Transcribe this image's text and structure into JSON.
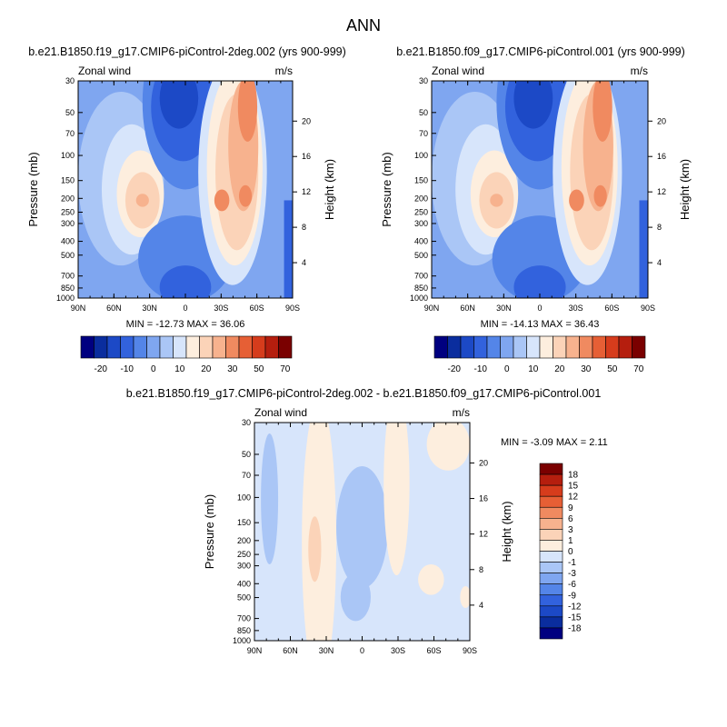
{
  "figure_title": "ANN",
  "chart_data": [
    {
      "type": "contour",
      "title": "b.e21.B1850.f19_g17.CMIP6-piControl-2deg.002 (yrs 900-999)",
      "left_label": "Zonal wind",
      "right_label": "m/s",
      "ylabel": "Pressure (mb)",
      "y2label": "Height (km)",
      "xticks": [
        "90N",
        "60N",
        "30N",
        "0",
        "30S",
        "60S",
        "90S"
      ],
      "yticks": [
        "30",
        "50",
        "70",
        "100",
        "150",
        "200",
        "250",
        "300",
        "400",
        "500",
        "700",
        "850",
        "1000"
      ],
      "y2ticks": [
        "20",
        "16",
        "12",
        "8",
        "4"
      ],
      "stats": "MIN = -12.73   MAX =  36.06",
      "colorbar": {
        "orientation": "horizontal",
        "labels": [
          "-20",
          "-10",
          "0",
          "10",
          "20",
          "30",
          "50",
          "70"
        ],
        "colors": [
          "#000080",
          "#0a2d9e",
          "#1c49c6",
          "#3262dd",
          "#5485e8",
          "#7fa6f0",
          "#aac6f6",
          "#d7e5fb",
          "#fdeede",
          "#fbd3b8",
          "#f7b28e",
          "#f08a60",
          "#e65f35",
          "#d63c1c",
          "#b51e0e",
          "#7a0000"
        ]
      }
    },
    {
      "type": "contour",
      "title": "b.e21.B1850.f09_g17.CMIP6-piControl.001 (yrs 900-999)",
      "left_label": "Zonal wind",
      "right_label": "m/s",
      "ylabel": "Pressure (mb)",
      "y2label": "Height (km)",
      "xticks": [
        "90N",
        "60N",
        "30N",
        "0",
        "30S",
        "60S",
        "90S"
      ],
      "yticks": [
        "30",
        "50",
        "70",
        "100",
        "150",
        "200",
        "250",
        "300",
        "400",
        "500",
        "700",
        "850",
        "1000"
      ],
      "y2ticks": [
        "20",
        "16",
        "12",
        "8",
        "4"
      ],
      "stats": "MIN = -14.13   MAX =  36.43",
      "colorbar": {
        "orientation": "horizontal",
        "labels": [
          "-20",
          "-10",
          "0",
          "10",
          "20",
          "30",
          "50",
          "70"
        ],
        "colors": [
          "#000080",
          "#0a2d9e",
          "#1c49c6",
          "#3262dd",
          "#5485e8",
          "#7fa6f0",
          "#aac6f6",
          "#d7e5fb",
          "#fdeede",
          "#fbd3b8",
          "#f7b28e",
          "#f08a60",
          "#e65f35",
          "#d63c1c",
          "#b51e0e",
          "#7a0000"
        ]
      }
    },
    {
      "type": "contour",
      "title": "b.e21.B1850.f19_g17.CMIP6-piControl-2deg.002 - b.e21.B1850.f09_g17.CMIP6-piControl.001",
      "left_label": "Zonal wind",
      "right_label": "m/s",
      "ylabel": "Pressure (mb)",
      "y2label": "Height (km)",
      "xticks": [
        "90N",
        "60N",
        "30N",
        "0",
        "30S",
        "60S",
        "90S"
      ],
      "yticks": [
        "30",
        "50",
        "70",
        "100",
        "150",
        "200",
        "250",
        "300",
        "400",
        "500",
        "700",
        "850",
        "1000"
      ],
      "y2ticks": [
        "20",
        "16",
        "12",
        "8",
        "4"
      ],
      "stats": "MIN =  -3.09   MAX =   2.11",
      "colorbar": {
        "orientation": "vertical",
        "labels": [
          "18",
          "15",
          "12",
          "9",
          "6",
          "3",
          "1",
          "0",
          "-1",
          "-3",
          "-6",
          "-9",
          "-12",
          "-15",
          "-18"
        ],
        "colors": [
          "#7a0000",
          "#b51e0e",
          "#d63c1c",
          "#e65f35",
          "#f08a60",
          "#f7b28e",
          "#fbd3b8",
          "#fdeede",
          "#d7e5fb",
          "#aac6f6",
          "#7fa6f0",
          "#5485e8",
          "#3262dd",
          "#1c49c6",
          "#0a2d9e",
          "#000080"
        ]
      }
    }
  ]
}
